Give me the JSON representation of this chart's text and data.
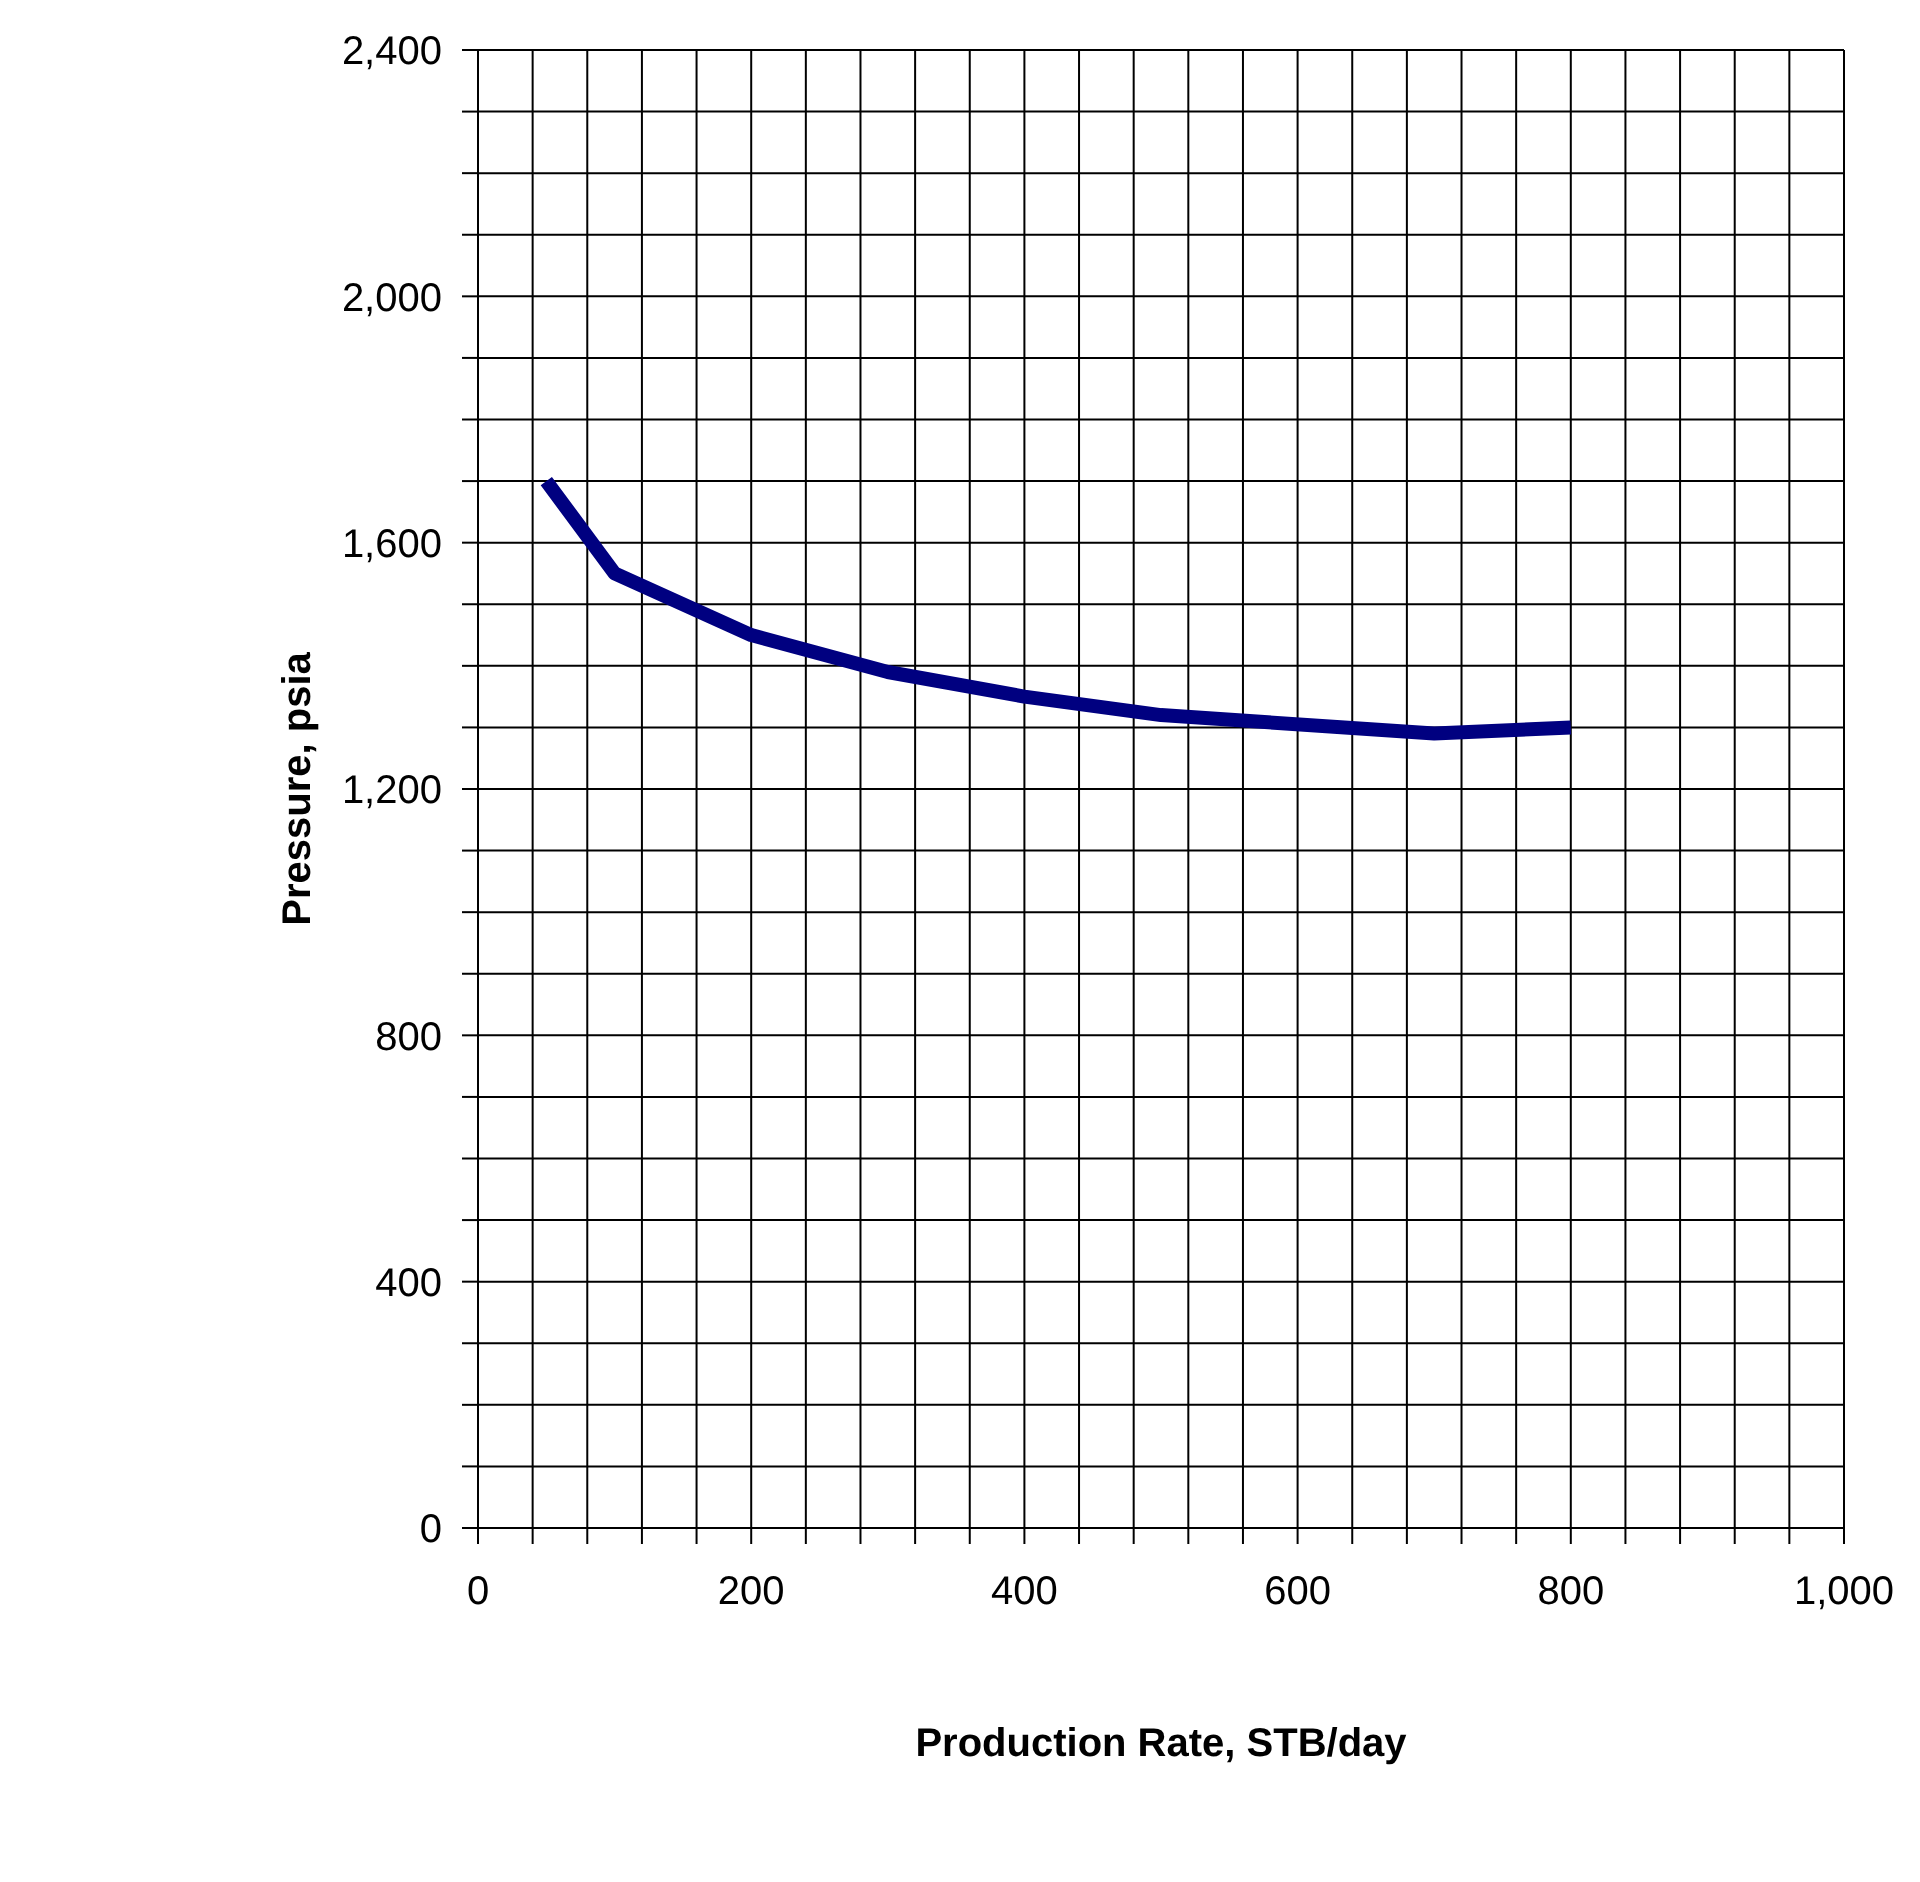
{
  "chart_data": {
    "type": "line",
    "xlabel": "Production Rate, STB/day",
    "ylabel": "Pressure, psia",
    "x": [
      50,
      100,
      200,
      300,
      400,
      500,
      700,
      800
    ],
    "series": [
      {
        "color": "#000080",
        "values": [
          1700,
          1550,
          1450,
          1390,
          1350,
          1320,
          1290,
          1300
        ]
      }
    ],
    "xlim": [
      0,
      1000
    ],
    "ylim": [
      0,
      2400
    ],
    "xticks": [
      0,
      {
        "value": 40,
        "label": null
      },
      {
        "value": 80,
        "label": null
      },
      {
        "value": 120,
        "label": null
      },
      {
        "value": 160,
        "label": null
      },
      200,
      {
        "value": 240,
        "label": null
      },
      {
        "value": 280,
        "label": null
      },
      {
        "value": 320,
        "label": null
      },
      {
        "value": 360,
        "label": null
      },
      400,
      {
        "value": 440,
        "label": null
      },
      {
        "value": 480,
        "label": null
      },
      {
        "value": 520,
        "label": null
      },
      {
        "value": 560,
        "label": null
      },
      600,
      {
        "value": 640,
        "label": null
      },
      {
        "value": 680,
        "label": null
      },
      {
        "value": 720,
        "label": null
      },
      {
        "value": 760,
        "label": null
      },
      800,
      {
        "value": 840,
        "label": null
      },
      {
        "value": 880,
        "label": null
      },
      {
        "value": 920,
        "label": null
      },
      {
        "value": 960,
        "label": null
      },
      {
        "value": 1000,
        "label": "1,000"
      }
    ],
    "yticks": [
      0,
      {
        "value": 100,
        "label": null
      },
      {
        "value": 200,
        "label": null
      },
      {
        "value": 300,
        "label": null
      },
      400,
      {
        "value": 500,
        "label": null
      },
      {
        "value": 600,
        "label": null
      },
      {
        "value": 700,
        "label": null
      },
      800,
      {
        "value": 900,
        "label": null
      },
      {
        "value": 1000,
        "label": null
      },
      {
        "value": 1100,
        "label": null
      },
      {
        "value": 1200,
        "label": "1,200"
      },
      {
        "value": 1300,
        "label": null
      },
      {
        "value": 1400,
        "label": null
      },
      {
        "value": 1500,
        "label": null
      },
      {
        "value": 1600,
        "label": "1,600"
      },
      {
        "value": 1700,
        "label": null
      },
      {
        "value": 1800,
        "label": null
      },
      {
        "value": 1900,
        "label": null
      },
      {
        "value": 2000,
        "label": "2,000"
      },
      {
        "value": 2100,
        "label": null
      },
      {
        "value": 2200,
        "label": null
      },
      {
        "value": 2300,
        "label": null
      },
      {
        "value": 2400,
        "label": "2,400"
      }
    ],
    "grid": true,
    "marker": "none",
    "line_style": "solid"
  }
}
